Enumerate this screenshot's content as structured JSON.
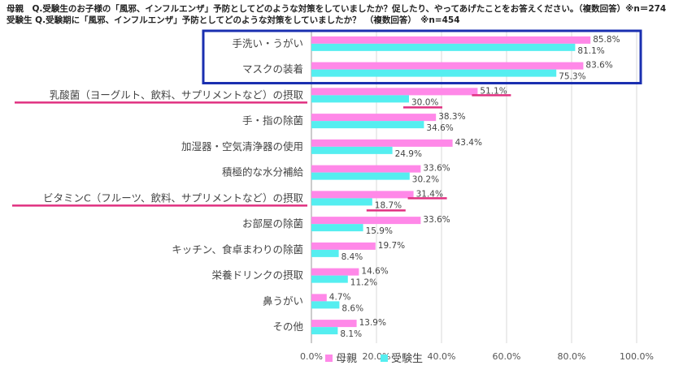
{
  "header": {
    "line1": "母親　Q.受験生のお子様の「風邪、インフルエンザ」予防としてどのような対策をしていましたか？促したり、やってあげたことをお答えください。（複数回答）※n＝274",
    "line2": "受験生 Q.受験期に「風邪、インフルエンザ」予防としてどのような対策をしていましたか？　（複数回答）　※n=454"
  },
  "chart_data": {
    "type": "bar",
    "orientation": "horizontal",
    "categories": [
      "手洗い・うがい",
      "マスクの装着",
      "乳酸菌（ヨーグルト、飲料、サプリメントなど）の摂取",
      "手・指の除菌",
      "加湿器・空気清浄器の使用",
      "積極的な水分補給",
      "ビタミンC（フルーツ、飲料、サプリメントなど）の摂取",
      "お部屋の除菌",
      "キッチン、食卓まわりの除菌",
      "栄養ドリンクの摂取",
      "鼻うがい",
      "その他"
    ],
    "series": [
      {
        "name": "母親",
        "color": "#FF88E8",
        "values": [
          85.8,
          83.6,
          51.1,
          38.3,
          43.4,
          33.6,
          31.4,
          33.6,
          19.7,
          14.6,
          4.7,
          13.9
        ],
        "labels": [
          "85.8%",
          "83.6%",
          "51.1%",
          "38.3%",
          "43.4%",
          "33.6%",
          "31.4%",
          "33.6%",
          "19.7%",
          "14.6%",
          "4.7%",
          "13.9%"
        ]
      },
      {
        "name": "受験生",
        "color": "#55EEF0",
        "values": [
          81.1,
          75.3,
          30.0,
          34.6,
          24.9,
          30.2,
          18.7,
          15.9,
          8.4,
          11.2,
          8.6,
          8.1
        ],
        "labels": [
          "81.1%",
          "75.3%",
          "30.0%",
          "34.6%",
          "24.9%",
          "30.2%",
          "18.7%",
          "15.9%",
          "8.4%",
          "11.2%",
          "8.6%",
          "8.1%"
        ]
      }
    ],
    "xlim": [
      0,
      100
    ],
    "xticks": [
      "0.0%",
      "20.0%",
      "40.0%",
      "60.0%",
      "80.0%",
      "100.0%"
    ],
    "grid": true,
    "legend_position": "bottom-left",
    "highlight_box_color": "#1A2FB0",
    "highlight_line_color": "#E03080"
  }
}
